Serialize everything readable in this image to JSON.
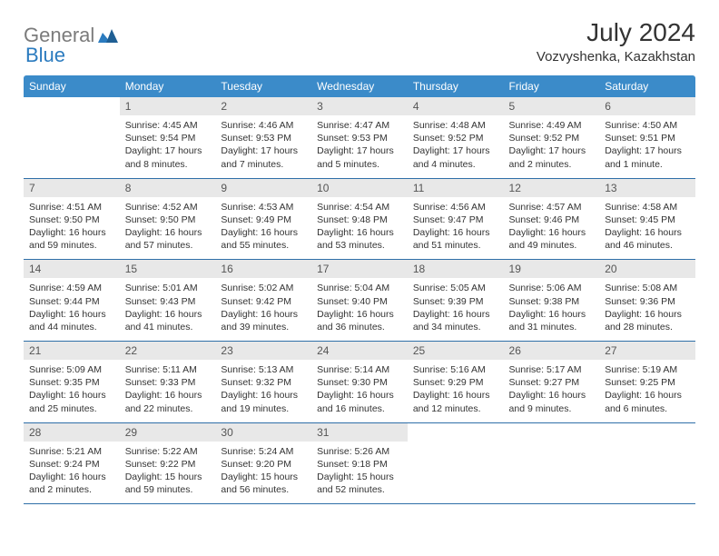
{
  "brand": {
    "part1": "General",
    "part2": "Blue"
  },
  "title": "July 2024",
  "location": "Vozvyshenka, Kazakhstan",
  "colors": {
    "header_bg": "#3b8bc9",
    "header_text": "#ffffff",
    "daynum_bg": "#e8e8e8",
    "border": "#2f6fa8",
    "logo_gray": "#7b7b7b",
    "logo_blue": "#2b7bbf"
  },
  "weekdays": [
    "Sunday",
    "Monday",
    "Tuesday",
    "Wednesday",
    "Thursday",
    "Friday",
    "Saturday"
  ],
  "weeks": [
    {
      "nums": [
        "",
        "1",
        "2",
        "3",
        "4",
        "5",
        "6"
      ],
      "cells": [
        "",
        "Sunrise: 4:45 AM\nSunset: 9:54 PM\nDaylight: 17 hours and 8 minutes.",
        "Sunrise: 4:46 AM\nSunset: 9:53 PM\nDaylight: 17 hours and 7 minutes.",
        "Sunrise: 4:47 AM\nSunset: 9:53 PM\nDaylight: 17 hours and 5 minutes.",
        "Sunrise: 4:48 AM\nSunset: 9:52 PM\nDaylight: 17 hours and 4 minutes.",
        "Sunrise: 4:49 AM\nSunset: 9:52 PM\nDaylight: 17 hours and 2 minutes.",
        "Sunrise: 4:50 AM\nSunset: 9:51 PM\nDaylight: 17 hours and 1 minute."
      ]
    },
    {
      "nums": [
        "7",
        "8",
        "9",
        "10",
        "11",
        "12",
        "13"
      ],
      "cells": [
        "Sunrise: 4:51 AM\nSunset: 9:50 PM\nDaylight: 16 hours and 59 minutes.",
        "Sunrise: 4:52 AM\nSunset: 9:50 PM\nDaylight: 16 hours and 57 minutes.",
        "Sunrise: 4:53 AM\nSunset: 9:49 PM\nDaylight: 16 hours and 55 minutes.",
        "Sunrise: 4:54 AM\nSunset: 9:48 PM\nDaylight: 16 hours and 53 minutes.",
        "Sunrise: 4:56 AM\nSunset: 9:47 PM\nDaylight: 16 hours and 51 minutes.",
        "Sunrise: 4:57 AM\nSunset: 9:46 PM\nDaylight: 16 hours and 49 minutes.",
        "Sunrise: 4:58 AM\nSunset: 9:45 PM\nDaylight: 16 hours and 46 minutes."
      ]
    },
    {
      "nums": [
        "14",
        "15",
        "16",
        "17",
        "18",
        "19",
        "20"
      ],
      "cells": [
        "Sunrise: 4:59 AM\nSunset: 9:44 PM\nDaylight: 16 hours and 44 minutes.",
        "Sunrise: 5:01 AM\nSunset: 9:43 PM\nDaylight: 16 hours and 41 minutes.",
        "Sunrise: 5:02 AM\nSunset: 9:42 PM\nDaylight: 16 hours and 39 minutes.",
        "Sunrise: 5:04 AM\nSunset: 9:40 PM\nDaylight: 16 hours and 36 minutes.",
        "Sunrise: 5:05 AM\nSunset: 9:39 PM\nDaylight: 16 hours and 34 minutes.",
        "Sunrise: 5:06 AM\nSunset: 9:38 PM\nDaylight: 16 hours and 31 minutes.",
        "Sunrise: 5:08 AM\nSunset: 9:36 PM\nDaylight: 16 hours and 28 minutes."
      ]
    },
    {
      "nums": [
        "21",
        "22",
        "23",
        "24",
        "25",
        "26",
        "27"
      ],
      "cells": [
        "Sunrise: 5:09 AM\nSunset: 9:35 PM\nDaylight: 16 hours and 25 minutes.",
        "Sunrise: 5:11 AM\nSunset: 9:33 PM\nDaylight: 16 hours and 22 minutes.",
        "Sunrise: 5:13 AM\nSunset: 9:32 PM\nDaylight: 16 hours and 19 minutes.",
        "Sunrise: 5:14 AM\nSunset: 9:30 PM\nDaylight: 16 hours and 16 minutes.",
        "Sunrise: 5:16 AM\nSunset: 9:29 PM\nDaylight: 16 hours and 12 minutes.",
        "Sunrise: 5:17 AM\nSunset: 9:27 PM\nDaylight: 16 hours and 9 minutes.",
        "Sunrise: 5:19 AM\nSunset: 9:25 PM\nDaylight: 16 hours and 6 minutes."
      ]
    },
    {
      "nums": [
        "28",
        "29",
        "30",
        "31",
        "",
        "",
        ""
      ],
      "cells": [
        "Sunrise: 5:21 AM\nSunset: 9:24 PM\nDaylight: 16 hours and 2 minutes.",
        "Sunrise: 5:22 AM\nSunset: 9:22 PM\nDaylight: 15 hours and 59 minutes.",
        "Sunrise: 5:24 AM\nSunset: 9:20 PM\nDaylight: 15 hours and 56 minutes.",
        "Sunrise: 5:26 AM\nSunset: 9:18 PM\nDaylight: 15 hours and 52 minutes.",
        "",
        "",
        ""
      ]
    }
  ]
}
